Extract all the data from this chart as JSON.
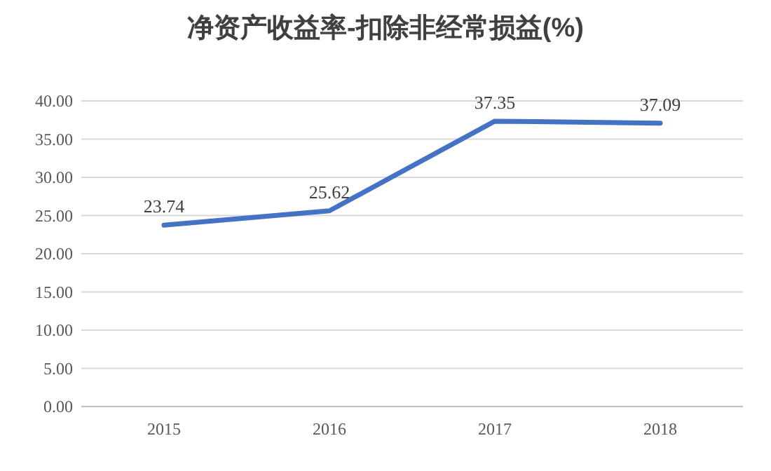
{
  "chart_data": {
    "type": "line",
    "title": "净资产收益率-扣除非经常损益(%)",
    "categories": [
      "2015",
      "2016",
      "2017",
      "2018"
    ],
    "series": [
      {
        "color": "#4472c4",
        "values": [
          23.74,
          25.62,
          37.35,
          37.09
        ]
      }
    ],
    "ylim": [
      0,
      40
    ],
    "yticks": [
      {
        "value": 0,
        "label": "0.00"
      },
      {
        "value": 5,
        "label": "5.00"
      },
      {
        "value": 10,
        "label": "10.00"
      },
      {
        "value": 15,
        "label": "15.00"
      },
      {
        "value": 20,
        "label": "20.00"
      },
      {
        "value": 25,
        "label": "25.00"
      },
      {
        "value": 30,
        "label": "30.00"
      },
      {
        "value": 35,
        "label": "35.00"
      },
      {
        "value": 40,
        "label": "40.00"
      }
    ],
    "grid": "y",
    "marker": "none",
    "line_style": "solid",
    "data_labels": true
  }
}
